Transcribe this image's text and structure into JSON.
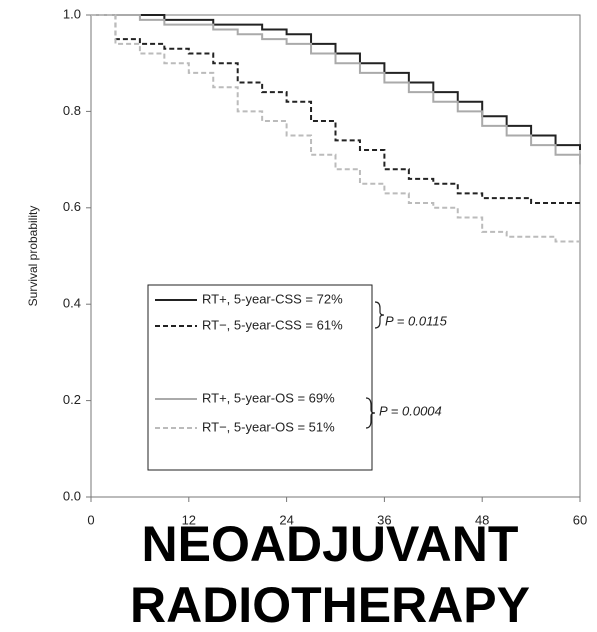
{
  "chart_data": {
    "type": "step",
    "ylabel": "Survival probability",
    "x": [
      0,
      3,
      6,
      9,
      12,
      15,
      18,
      21,
      24,
      27,
      30,
      33,
      36,
      39,
      42,
      45,
      48,
      51,
      54,
      57,
      60
    ],
    "xlim": [
      0,
      60
    ],
    "xticks": [
      0,
      12,
      24,
      36,
      48,
      60
    ],
    "ylim": [
      0,
      1
    ],
    "yticks": [
      {
        "value": 0,
        "label": "0.0"
      },
      0.2,
      0.4,
      0.6,
      0.8,
      {
        "value": 1,
        "label": "1.0"
      }
    ],
    "series": [
      {
        "name": "RT+, 5-year-CSS = 72%",
        "color": "#222222",
        "style": "solid",
        "values": [
          1,
          1,
          1,
          0.99,
          0.99,
          0.98,
          0.98,
          0.97,
          0.96,
          0.94,
          0.92,
          0.9,
          0.88,
          0.86,
          0.84,
          0.82,
          0.79,
          0.77,
          0.75,
          0.73,
          0.72
        ]
      },
      {
        "name": "RT−, 5-year-CSS = 61%",
        "color": "#222222",
        "style": "dashed",
        "values": [
          1,
          0.95,
          0.94,
          0.93,
          0.92,
          0.9,
          0.86,
          0.84,
          0.82,
          0.78,
          0.74,
          0.72,
          0.68,
          0.66,
          0.65,
          0.63,
          0.62,
          0.62,
          0.61,
          0.61,
          0.61
        ]
      },
      {
        "name": "RT+, 5-year-OS = 69%",
        "color": "#aaaaaa",
        "style": "solid",
        "values": [
          1,
          1,
          0.99,
          0.98,
          0.98,
          0.97,
          0.96,
          0.95,
          0.94,
          0.92,
          0.9,
          0.88,
          0.86,
          0.84,
          0.82,
          0.8,
          0.77,
          0.75,
          0.73,
          0.71,
          0.69
        ]
      },
      {
        "name": "RT−, 5-year-OS = 51%",
        "color": "#bbbbbb",
        "style": "dashed",
        "values": [
          1,
          0.94,
          0.92,
          0.9,
          0.88,
          0.85,
          0.8,
          0.78,
          0.75,
          0.71,
          0.68,
          0.65,
          0.63,
          0.61,
          0.6,
          0.58,
          0.55,
          0.54,
          0.54,
          0.53,
          0.51
        ]
      }
    ],
    "annotations": [
      "P = 0.0115",
      "P = 0.0004"
    ]
  },
  "overlay_text": [
    "NEOADJUVANT",
    "RADIOTHERAPY"
  ]
}
